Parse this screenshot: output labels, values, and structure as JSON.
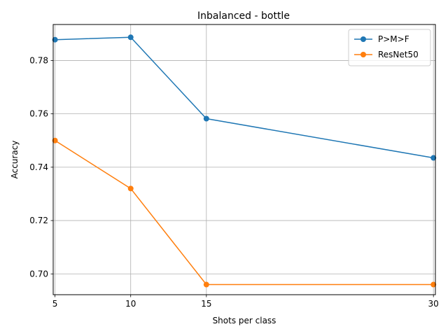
{
  "chart_data": {
    "type": "line",
    "title": "Inbalanced - bottle",
    "xlabel": "Shots per class",
    "ylabel": "Accuracy",
    "x": [
      5,
      10,
      15,
      30
    ],
    "xlim": [
      4.88,
      30.13
    ],
    "ylim": [
      0.6922,
      0.7935
    ],
    "xticks": [
      5,
      10,
      15,
      30
    ],
    "yticks": [
      0.7,
      0.72,
      0.74,
      0.76,
      0.78
    ],
    "ytick_labels": [
      "0.70",
      "0.72",
      "0.74",
      "0.76",
      "0.78"
    ],
    "grid": true,
    "legend_position": "top-right",
    "series": [
      {
        "name": "P>M>F",
        "color": "#1f77b4",
        "values": [
          0.7878,
          0.7887,
          0.7582,
          0.7435
        ]
      },
      {
        "name": "ResNet50",
        "color": "#ff7f0e",
        "values": [
          0.75,
          0.732,
          0.696,
          0.696
        ]
      }
    ]
  }
}
